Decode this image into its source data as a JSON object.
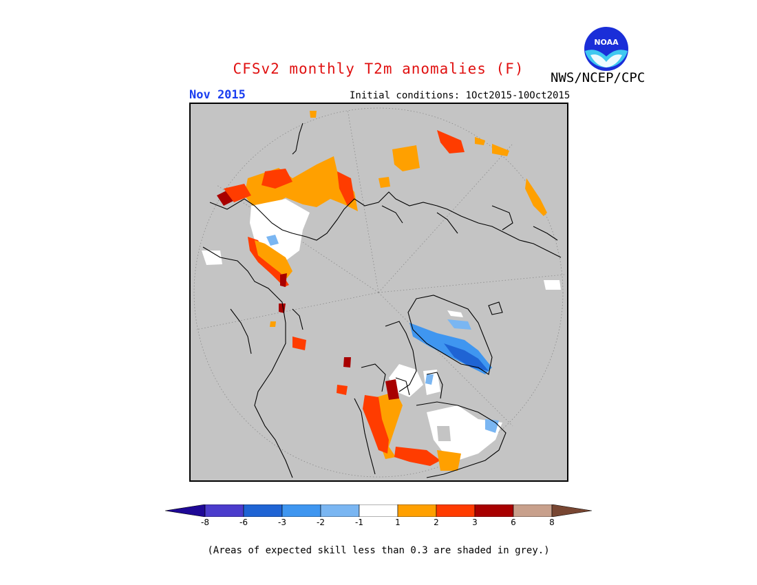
{
  "title": "CFSv2 monthly T2m anomalies (F)",
  "agency": "NWS/NCEP/CPC",
  "logo": {
    "text": "NOAA",
    "icon": "noaa-logo"
  },
  "month": "Nov 2015",
  "initial_conditions": "Initial conditions: 1Oct2015-10Oct2015",
  "footnote": "(Areas of expected skill less than 0.3 are shaded in grey.)",
  "colors": {
    "title": "#e01010",
    "month": "#1a3ef0",
    "background_map": "#c4c4c4",
    "coastline": "#000000"
  },
  "legend": {
    "units": "F",
    "bins": [
      {
        "color": "#1e0896"
      },
      {
        "color": "#4b3ccc"
      },
      {
        "color": "#1f64d4"
      },
      {
        "color": "#3f96f0"
      },
      {
        "color": "#7ab6f2"
      },
      {
        "color": "#ffffff"
      },
      {
        "color": "#ffa000"
      },
      {
        "color": "#ff3c00"
      },
      {
        "color": "#a80000"
      },
      {
        "color": "#c8a08c"
      },
      {
        "color": "#784632"
      }
    ],
    "ticks": [
      "-8",
      "-6",
      "-3",
      "-2",
      "-1",
      "1",
      "2",
      "3",
      "6",
      "8"
    ]
  }
}
